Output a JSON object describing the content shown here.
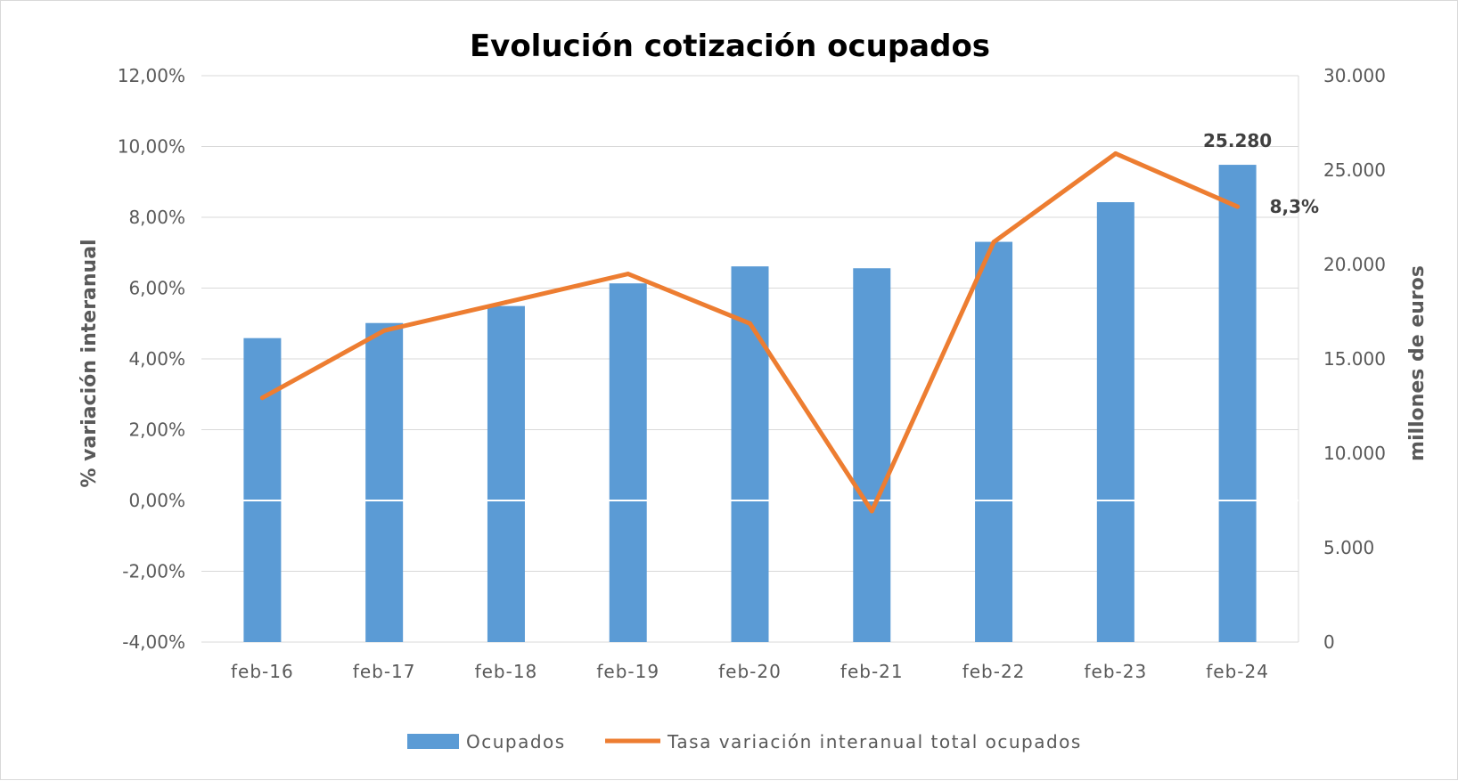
{
  "chart_data": {
    "type": "bar",
    "title": "Evolución cotización ocupados",
    "categories": [
      "feb-16",
      "feb-17",
      "feb-18",
      "feb-19",
      "feb-20",
      "feb-21",
      "feb-22",
      "feb-23",
      "feb-24"
    ],
    "series": [
      {
        "name": "Ocupados",
        "type": "bar",
        "axis": "right",
        "color": "#5b9bd5",
        "values": [
          16100,
          16900,
          17800,
          19000,
          19900,
          19800,
          21200,
          23300,
          25280
        ]
      },
      {
        "name": "Tasa variación interanual total ocupados",
        "type": "line",
        "axis": "left",
        "color": "#ed7d31",
        "values": [
          2.9,
          4.8,
          5.6,
          6.4,
          5.0,
          -0.3,
          7.3,
          9.8,
          8.3
        ]
      }
    ],
    "y_left": {
      "label": "% variación interanual",
      "range": [
        -4,
        12
      ],
      "ticks": [
        -4,
        -2,
        0,
        2,
        4,
        6,
        8,
        10,
        12
      ],
      "tick_labels": [
        "-4,00%",
        "-2,00%",
        "0,00%",
        "2,00%",
        "4,00%",
        "6,00%",
        "8,00%",
        "10,00%",
        "12,00%"
      ]
    },
    "y_right": {
      "label": "millones de euros",
      "range": [
        0,
        30000
      ],
      "ticks": [
        0,
        5000,
        10000,
        15000,
        20000,
        25000,
        30000
      ],
      "tick_labels": [
        "0",
        "5.000",
        "10.000",
        "15.000",
        "20.000",
        "25.000",
        "30.000"
      ]
    },
    "data_labels": [
      {
        "series": 0,
        "index": 8,
        "text": "25.280"
      },
      {
        "series": 1,
        "index": 8,
        "text": "8,3%"
      }
    ],
    "grid": true,
    "legend_position": "bottom"
  }
}
